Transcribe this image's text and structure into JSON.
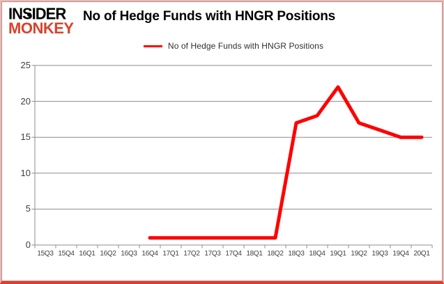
{
  "brand": {
    "line1": "INSIDER",
    "line2": "MONKEY",
    "monkey_color": "#d9422b"
  },
  "header": {
    "title": "No of Hedge Funds with HNGR Positions"
  },
  "legend": {
    "label": "No of Hedge Funds with HNGR Positions",
    "line_color": "#ff0000"
  },
  "chart_data": {
    "type": "line",
    "title": "No of Hedge Funds with HNGR Positions",
    "categories": [
      "15Q3",
      "15Q4",
      "16Q1",
      "16Q2",
      "16Q3",
      "16Q4",
      "17Q1",
      "17Q2",
      "17Q3",
      "17Q4",
      "18Q1",
      "18Q2",
      "18Q3",
      "18Q4",
      "19Q1",
      "19Q2",
      "19Q3",
      "19Q4",
      "20Q1"
    ],
    "series": [
      {
        "name": "No of Hedge Funds with HNGR Positions",
        "color": "#ff0000",
        "values": [
          null,
          null,
          null,
          null,
          null,
          1,
          1,
          1,
          1,
          1,
          1,
          1,
          17,
          18,
          22,
          17,
          16,
          15,
          15
        ]
      }
    ],
    "ylim": [
      0,
      25
    ],
    "yticks": [
      0,
      5,
      10,
      15,
      20,
      25
    ],
    "grid": true,
    "legend_position": "top",
    "gridline_color": "#8c8c8c",
    "axis_color": "#8c8c8c",
    "axis_label_color": "#404040"
  }
}
